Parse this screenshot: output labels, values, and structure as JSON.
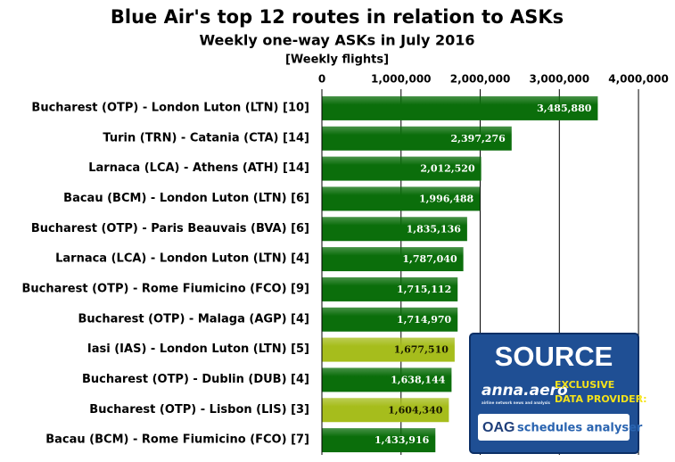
{
  "chart_data": {
    "type": "hbar",
    "title": "Blue Air's top 12 routes in relation to ASKs",
    "subtitle": "Weekly one-way ASKs in July 2016",
    "note": "[Weekly flights]",
    "categories": [
      "Bucharest (OTP) - London Luton (LTN) [10]",
      "Turin (TRN) - Catania (CTA) [14]",
      "Larnaca (LCA) - Athens (ATH) [14]",
      "Bacau (BCM) - London Luton (LTN) [6]",
      "Bucharest (OTP) - Paris Beauvais (BVA) [6]",
      "Larnaca (LCA) - London Luton (LTN) [4]",
      "Bucharest (OTP) - Rome Fiumicino (FCO) [9]",
      "Bucharest (OTP) - Malaga (AGP) [4]",
      "Iasi (IAS) - London Luton (LTN) [5]",
      "Bucharest (OTP) - Dublin (DUB) [4]",
      "Bucharest (OTP) - Lisbon (LIS) [3]",
      "Bacau (BCM) - Rome Fiumicino (FCO) [7]"
    ],
    "values": [
      3485880,
      2397276,
      2012520,
      1996488,
      1835136,
      1787040,
      1715112,
      1714970,
      1677510,
      1638144,
      1604340,
      1433916
    ],
    "value_labels": [
      "3,485,880",
      "2,397,276",
      "2,012,520",
      "1,996,488",
      "1,835,136",
      "1,787,040",
      "1,715,112",
      "1,714,970",
      "1,677,510",
      "1,638,144",
      "1,604,340",
      "1,433,916"
    ],
    "colors": [
      "#0b6e0b",
      "#0b6e0b",
      "#0b6e0b",
      "#0b6e0b",
      "#0b6e0b",
      "#0b6e0b",
      "#0b6e0b",
      "#0b6e0b",
      "#a6bd1c",
      "#0b6e0b",
      "#a6bd1c",
      "#0b6e0b"
    ],
    "label_colors": [
      "#ffffff",
      "#ffffff",
      "#ffffff",
      "#ffffff",
      "#ffffff",
      "#ffffff",
      "#ffffff",
      "#ffffff",
      "#1a1a00",
      "#ffffff",
      "#1a1a00",
      "#ffffff"
    ],
    "xlim": [
      0,
      4450000
    ],
    "xticks": [
      0,
      {
        "value": 1000000,
        "label": "1,000,000"
      },
      {
        "value": 2000000,
        "label": "2,000,000"
      },
      {
        "value": 3000000,
        "label": "3,000,000"
      },
      {
        "value": 4000000,
        "label": "4,000,000"
      }
    ],
    "grid": true
  },
  "badge": {
    "heading": "SOURCE",
    "brand": "anna.aero",
    "tagline": "airline network news and analysis",
    "line1": "EXCLUSIVE",
    "line2": "DATA PROVIDER:",
    "oag": "OAG",
    "product": "schedules analyser"
  }
}
